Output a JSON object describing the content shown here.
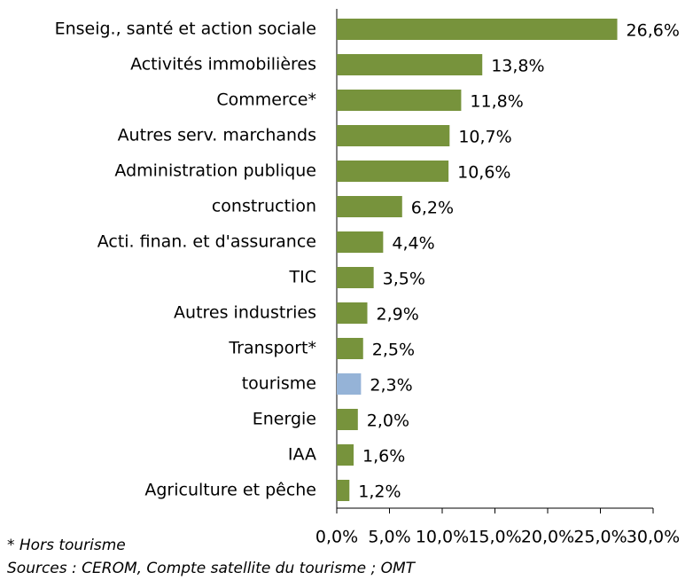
{
  "chart_data": {
    "type": "barh",
    "categories": [
      "Enseig., santé et action sociale",
      "Activités immobilières",
      "Commerce*",
      "Autres serv. marchands",
      "Administration publique",
      "construction",
      "Acti. finan. et d'assurance",
      "TIC",
      "Autres industries",
      "Transport*",
      "tourisme",
      "Energie",
      "IAA",
      "Agriculture et pêche"
    ],
    "values": [
      26.6,
      13.8,
      11.8,
      10.7,
      10.6,
      6.2,
      4.4,
      3.5,
      2.9,
      2.5,
      2.3,
      2.0,
      1.6,
      1.2
    ],
    "value_labels": [
      "26,6%",
      "13,8%",
      "11,8%",
      "10,7%",
      "10,6%",
      "6,2%",
      "4,4%",
      "3,5%",
      "2,9%",
      "2,5%",
      "2,3%",
      "2,0%",
      "1,6%",
      "1,2%"
    ],
    "colors": [
      "#77933c",
      "#77933c",
      "#77933c",
      "#77933c",
      "#77933c",
      "#77933c",
      "#77933c",
      "#77933c",
      "#77933c",
      "#77933c",
      "#95b3d7",
      "#77933c",
      "#77933c",
      "#77933c"
    ],
    "xlim": [
      0,
      30
    ],
    "xticks": [
      {
        "value": 0,
        "label": "0,0%"
      },
      {
        "value": 5,
        "label": "5,0%"
      },
      {
        "value": 10,
        "label": "10,0%"
      },
      {
        "value": 15,
        "label": "15,0%"
      },
      {
        "value": 20,
        "label": "20,0%"
      },
      {
        "value": 25,
        "label": "25,0%"
      },
      {
        "value": 30,
        "label": "30,0%"
      }
    ],
    "notes": [
      "* Hors tourisme",
      "Sources : CEROM, Compte satellite du tourisme ; OMT"
    ]
  }
}
